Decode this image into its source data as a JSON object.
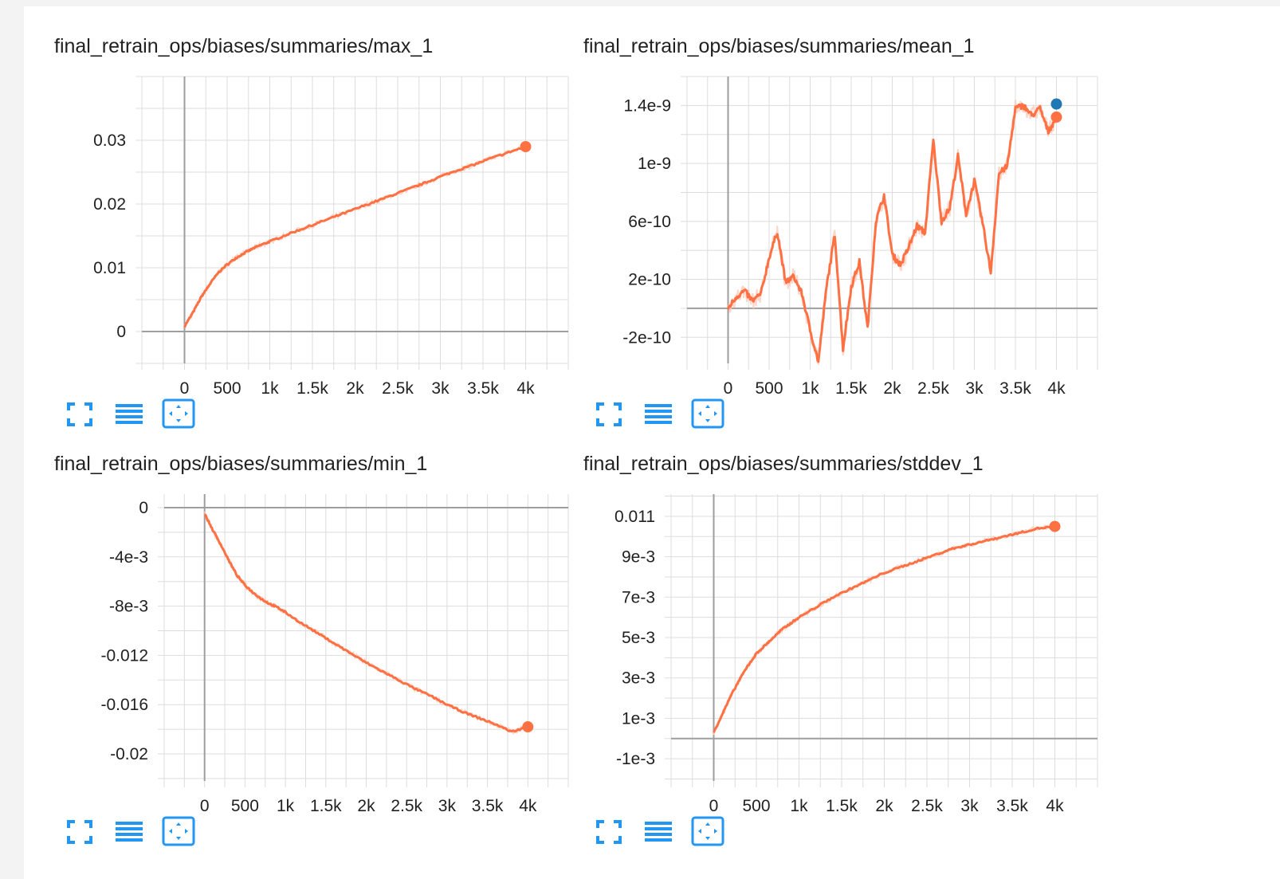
{
  "colors": {
    "series": "#ff7043",
    "series_light": "#ffccbc",
    "secondary": "#1f77b4",
    "grid": "#dddddd",
    "axis": "#9e9e9e",
    "icon": "#2196f3"
  },
  "toolbar_icons": [
    "fullscreen-icon",
    "data-table-icon",
    "fit-domain-icon"
  ],
  "chart_data": [
    {
      "type": "line",
      "title": "final_retrain_ops/biases/summaries/max_1",
      "xlim": [
        -500,
        4500
      ],
      "ylim": [
        -0.005,
        0.04
      ],
      "x_ticks": [
        0,
        500,
        1000,
        1500,
        2000,
        2500,
        3000,
        3500,
        4000
      ],
      "x_tick_labels": [
        "0",
        "500",
        "1k",
        "1.5k",
        "2k",
        "2.5k",
        "3k",
        "3.5k",
        "4k"
      ],
      "y_ticks": [
        0,
        0.01,
        0.02,
        0.03
      ],
      "y_tick_labels": [
        "0",
        "0.01",
        "0.02",
        "0.03"
      ],
      "series": [
        {
          "x": [
            0,
            100,
            200,
            300,
            400,
            500,
            600,
            700,
            800,
            900,
            1000,
            1200,
            1400,
            1600,
            1800,
            2000,
            2200,
            2400,
            2600,
            2800,
            3000,
            3200,
            3400,
            3600,
            3800,
            4000
          ],
          "y": [
            0.0008,
            0.003,
            0.0055,
            0.0075,
            0.0093,
            0.0105,
            0.0115,
            0.0123,
            0.013,
            0.0136,
            0.0141,
            0.0152,
            0.0162,
            0.0172,
            0.0182,
            0.0192,
            0.0202,
            0.0212,
            0.0222,
            0.0232,
            0.0243,
            0.0253,
            0.0262,
            0.0272,
            0.0281,
            0.029
          ]
        }
      ],
      "last_point": [
        4000,
        0.029
      ]
    },
    {
      "type": "line",
      "title": "final_retrain_ops/biases/summaries/mean_1",
      "xlim": [
        -500,
        4500
      ],
      "ylim": [
        -3.8e-10,
        1.6e-09
      ],
      "x_ticks": [
        0,
        500,
        1000,
        1500,
        2000,
        2500,
        3000,
        3500,
        4000
      ],
      "x_tick_labels": [
        "0",
        "500",
        "1k",
        "1.5k",
        "2k",
        "2.5k",
        "3k",
        "3.5k",
        "4k"
      ],
      "y_ticks": [
        -2e-10,
        2e-10,
        6e-10,
        1e-09,
        1.4e-09
      ],
      "y_tick_labels": [
        "-2e-10",
        "2e-10",
        "6e-10",
        "1e-9",
        "1.4e-9"
      ],
      "series": [
        {
          "x": [
            0,
            100,
            200,
            300,
            400,
            500,
            600,
            700,
            800,
            900,
            1000,
            1100,
            1200,
            1300,
            1400,
            1500,
            1600,
            1700,
            1800,
            1900,
            2000,
            2100,
            2200,
            2300,
            2400,
            2500,
            2600,
            2700,
            2800,
            2900,
            3000,
            3100,
            3200,
            3300,
            3400,
            3500,
            3600,
            3700,
            3800,
            3900,
            4000
          ],
          "y": [
            0,
            8e-11,
            1.2e-10,
            5e-11,
            1e-10,
            3.5e-10,
            5.3e-10,
            1.8e-10,
            2.2e-10,
            1e-10,
            -1.5e-10,
            -3.7e-10,
            1.5e-10,
            5.1e-10,
            -2.8e-10,
            1.5e-10,
            3.2e-10,
            -1.4e-10,
            6e-10,
            7.8e-10,
            3.7e-10,
            3e-10,
            4.2e-10,
            5.7e-10,
            5.2e-10,
            1.16e-09,
            6e-10,
            6.9e-10,
            1.05e-09,
            6.5e-10,
            8.8e-10,
            5.9e-10,
            2.5e-10,
            9.3e-10,
            9.8e-10,
            1.38e-09,
            1.4e-09,
            1.33e-09,
            1.38e-09,
            1.22e-09,
            1.32e-09
          ]
        }
      ],
      "last_point": [
        4000,
        1.32e-09
      ],
      "last_point_secondary": [
        4000,
        1.41e-09
      ]
    },
    {
      "type": "line",
      "title": "final_retrain_ops/biases/summaries/min_1",
      "xlim": [
        -500,
        4500
      ],
      "ylim": [
        -0.0222,
        0.0011
      ],
      "x_ticks": [
        0,
        500,
        1000,
        1500,
        2000,
        2500,
        3000,
        3500,
        4000
      ],
      "x_tick_labels": [
        "0",
        "500",
        "1k",
        "1.5k",
        "2k",
        "2.5k",
        "3k",
        "3.5k",
        "4k"
      ],
      "y_ticks": [
        0,
        -0.004,
        -0.008,
        -0.012,
        -0.016,
        -0.02
      ],
      "y_tick_labels": [
        "0",
        "-4e-3",
        "-8e-3",
        "-0.012",
        "-0.016",
        "-0.02"
      ],
      "series": [
        {
          "x": [
            0,
            100,
            200,
            300,
            400,
            500,
            600,
            700,
            800,
            900,
            1000,
            1200,
            1400,
            1600,
            1800,
            2000,
            2200,
            2400,
            2600,
            2800,
            3000,
            3200,
            3400,
            3600,
            3800,
            4000
          ],
          "y": [
            -0.0005,
            -0.0018,
            -0.003,
            -0.0043,
            -0.0055,
            -0.0063,
            -0.0069,
            -0.0074,
            -0.0078,
            -0.0081,
            -0.0085,
            -0.0094,
            -0.0102,
            -0.011,
            -0.0118,
            -0.0126,
            -0.0133,
            -0.014,
            -0.0147,
            -0.0153,
            -0.016,
            -0.0166,
            -0.0171,
            -0.0176,
            -0.0182,
            -0.0178
          ]
        }
      ],
      "last_point": [
        4000,
        -0.0178
      ]
    },
    {
      "type": "line",
      "title": "final_retrain_ops/biases/summaries/stddev_1",
      "xlim": [
        -500,
        4500
      ],
      "ylim": [
        -0.0021,
        0.0121
      ],
      "x_ticks": [
        0,
        500,
        1000,
        1500,
        2000,
        2500,
        3000,
        3500,
        4000
      ],
      "x_tick_labels": [
        "0",
        "500",
        "1k",
        "1.5k",
        "2k",
        "2.5k",
        "3k",
        "3.5k",
        "4k"
      ],
      "y_ticks": [
        -0.001,
        0.001,
        0.003,
        0.005,
        0.007,
        0.009,
        0.011
      ],
      "y_tick_labels": [
        "-1e-3",
        "1e-3",
        "3e-3",
        "5e-3",
        "7e-3",
        "9e-3",
        "0.011"
      ],
      "series": [
        {
          "x": [
            0,
            100,
            200,
            300,
            400,
            500,
            600,
            700,
            800,
            900,
            1000,
            1200,
            1400,
            1600,
            1800,
            2000,
            2200,
            2400,
            2600,
            2800,
            3000,
            3200,
            3400,
            3600,
            3800,
            4000
          ],
          "y": [
            0.0003,
            0.0012,
            0.0021,
            0.0029,
            0.0036,
            0.0042,
            0.0046,
            0.005,
            0.0054,
            0.0057,
            0.006,
            0.0065,
            0.007,
            0.0074,
            0.0078,
            0.0082,
            0.0085,
            0.0088,
            0.0091,
            0.0094,
            0.0096,
            0.0098,
            0.01,
            0.0102,
            0.0104,
            0.0105
          ]
        }
      ],
      "last_point": [
        4000,
        0.0105
      ]
    }
  ]
}
